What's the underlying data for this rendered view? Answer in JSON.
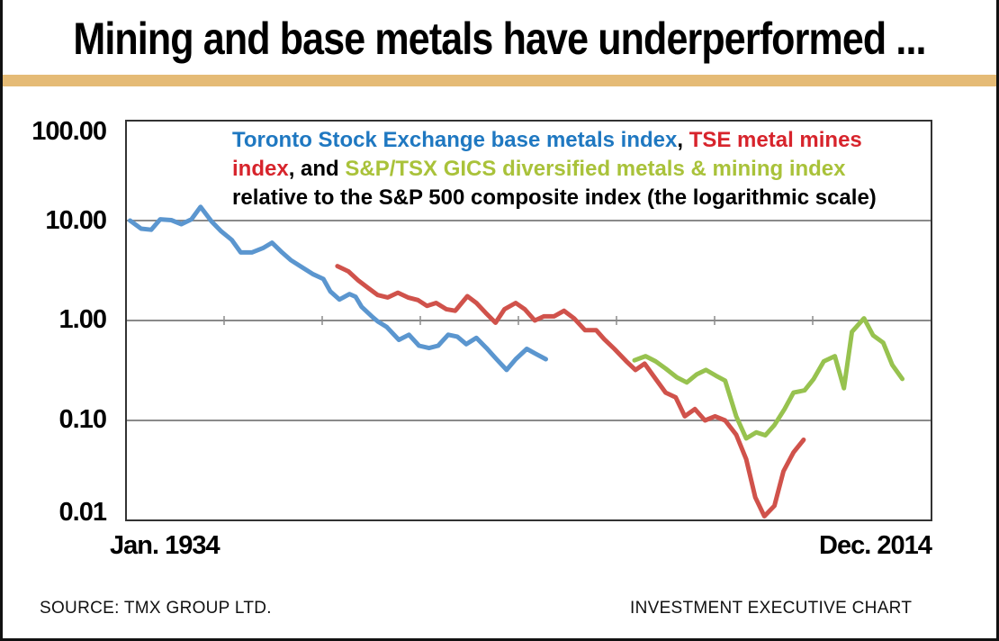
{
  "header": {
    "title": "Mining and base metals have underperformed ..."
  },
  "footer": {
    "source": "SOURCE: TMX GROUP LTD.",
    "credit": "INVESTMENT EXECUTIVE CHART"
  },
  "colors": {
    "blue": "#5b96cf",
    "red": "#d0524b",
    "green": "#97c24f",
    "gold_band": "#e5bb76",
    "grid": "#8a8a8a"
  },
  "legend": {
    "blue_text": "Toronto Stock Exchange base metals index",
    "sep1": ", ",
    "red_text_1": "TSE metal mines",
    "red_text_2": "index",
    "sep2": ", and ",
    "green_text": "S&P/TSX GICS diversified metals & mining index",
    "line3": "relative to the S&P 500 composite index (the logarithmic scale)"
  },
  "chart_data": {
    "type": "line",
    "title": "Mining and base metals have underperformed ...",
    "xlabel": "",
    "ylabel": "",
    "yscale": "log",
    "ylim": [
      0.01,
      100
    ],
    "xlim": [
      1934.0,
      2014.0
    ],
    "y_tick_labels": [
      "100.00",
      "10.00",
      "1.00",
      "0.10",
      "0.01"
    ],
    "y_ticks": [
      100,
      10,
      1,
      0.1,
      0.01
    ],
    "x_tick_labels": [
      "Jan. 1934",
      "Dec. 2014"
    ],
    "grid": "horizontal",
    "legend_placement": "top-center (inline text)",
    "series": [
      {
        "name": "Toronto Stock Exchange base metals index",
        "color": "#5b96cf",
        "x": [
          1934.4,
          1935.5,
          1936.5,
          1937.4,
          1938.5,
          1939.5,
          1940.5,
          1941.4,
          1942.5,
          1943.4,
          1944.5,
          1945.4,
          1946.5,
          1947.6,
          1948.5,
          1949.5,
          1950.4,
          1951.5,
          1952.6,
          1953.6,
          1954.3,
          1955.2,
          1956.2,
          1956.8,
          1957.4,
          1958.5,
          1959.0,
          1959.9,
          1961.1,
          1962.1,
          1963.1,
          1964.1,
          1965.0,
          1966.0,
          1966.9,
          1967.8,
          1968.8,
          1969.8,
          1970.8,
          1971.8,
          1972.7,
          1973.8,
          1974.6,
          1975.7
        ],
        "values": [
          10.0,
          8.3,
          8.1,
          10.3,
          10.1,
          9.2,
          10.3,
          13.7,
          9.8,
          7.9,
          6.4,
          4.8,
          4.8,
          5.3,
          6.0,
          4.8,
          4.0,
          3.4,
          2.9,
          2.6,
          1.95,
          1.62,
          1.84,
          1.73,
          1.37,
          1.08,
          0.98,
          0.86,
          0.64,
          0.72,
          0.56,
          0.53,
          0.56,
          0.72,
          0.69,
          0.58,
          0.67,
          0.53,
          0.41,
          0.32,
          0.41,
          0.52,
          0.47,
          0.41
        ]
      },
      {
        "name": "TSE metal mines index",
        "color": "#d0524b",
        "x": [
          1955.0,
          1956.1,
          1957.1,
          1958.1,
          1959.0,
          1960.0,
          1961.0,
          1962.0,
          1963.0,
          1963.9,
          1964.8,
          1965.8,
          1966.7,
          1967.9,
          1968.8,
          1969.7,
          1970.7,
          1971.6,
          1972.7,
          1973.6,
          1974.6,
          1975.5,
          1976.5,
          1977.5,
          1978.5,
          1979.6,
          1980.7,
          1981.5,
          1982.5,
          1983.7,
          1984.6,
          1985.5,
          1986.6,
          1987.6,
          1988.6,
          1989.5,
          1990.5,
          1991.5,
          1992.5,
          1993.5,
          1994.6,
          1995.6,
          1996.5,
          1997.4,
          1998.4,
          1999.3,
          2000.3,
          2001.3
        ],
        "values": [
          3.5,
          3.1,
          2.5,
          2.1,
          1.8,
          1.7,
          1.9,
          1.7,
          1.6,
          1.4,
          1.5,
          1.3,
          1.25,
          1.75,
          1.5,
          1.2,
          0.95,
          1.3,
          1.5,
          1.3,
          1.0,
          1.1,
          1.1,
          1.25,
          1.05,
          0.8,
          0.8,
          0.65,
          0.52,
          0.39,
          0.32,
          0.37,
          0.26,
          0.19,
          0.17,
          0.11,
          0.13,
          0.1,
          0.11,
          0.1,
          0.072,
          0.041,
          0.017,
          0.011,
          0.014,
          0.031,
          0.048,
          0.064
        ]
      },
      {
        "name": "S&P/TSX GICS diversified metals & mining index",
        "color": "#97c24f",
        "x": [
          1984.5,
          1985.6,
          1986.6,
          1987.6,
          1988.7,
          1989.7,
          1990.7,
          1991.6,
          1992.6,
          1993.5,
          1994.6,
          1995.6,
          1996.6,
          1997.5,
          1998.4,
          1999.4,
          2000.3,
          2001.4,
          2002.3,
          2003.3,
          2004.4,
          2005.3,
          2006.1,
          2007.3,
          2008.2,
          2009.2,
          2010.1,
          2011.1
        ],
        "values": [
          0.4,
          0.44,
          0.39,
          0.33,
          0.27,
          0.24,
          0.29,
          0.32,
          0.28,
          0.25,
          0.11,
          0.066,
          0.076,
          0.071,
          0.09,
          0.13,
          0.19,
          0.2,
          0.26,
          0.39,
          0.44,
          0.21,
          0.77,
          1.05,
          0.71,
          0.6,
          0.36,
          0.26
        ]
      }
    ]
  }
}
